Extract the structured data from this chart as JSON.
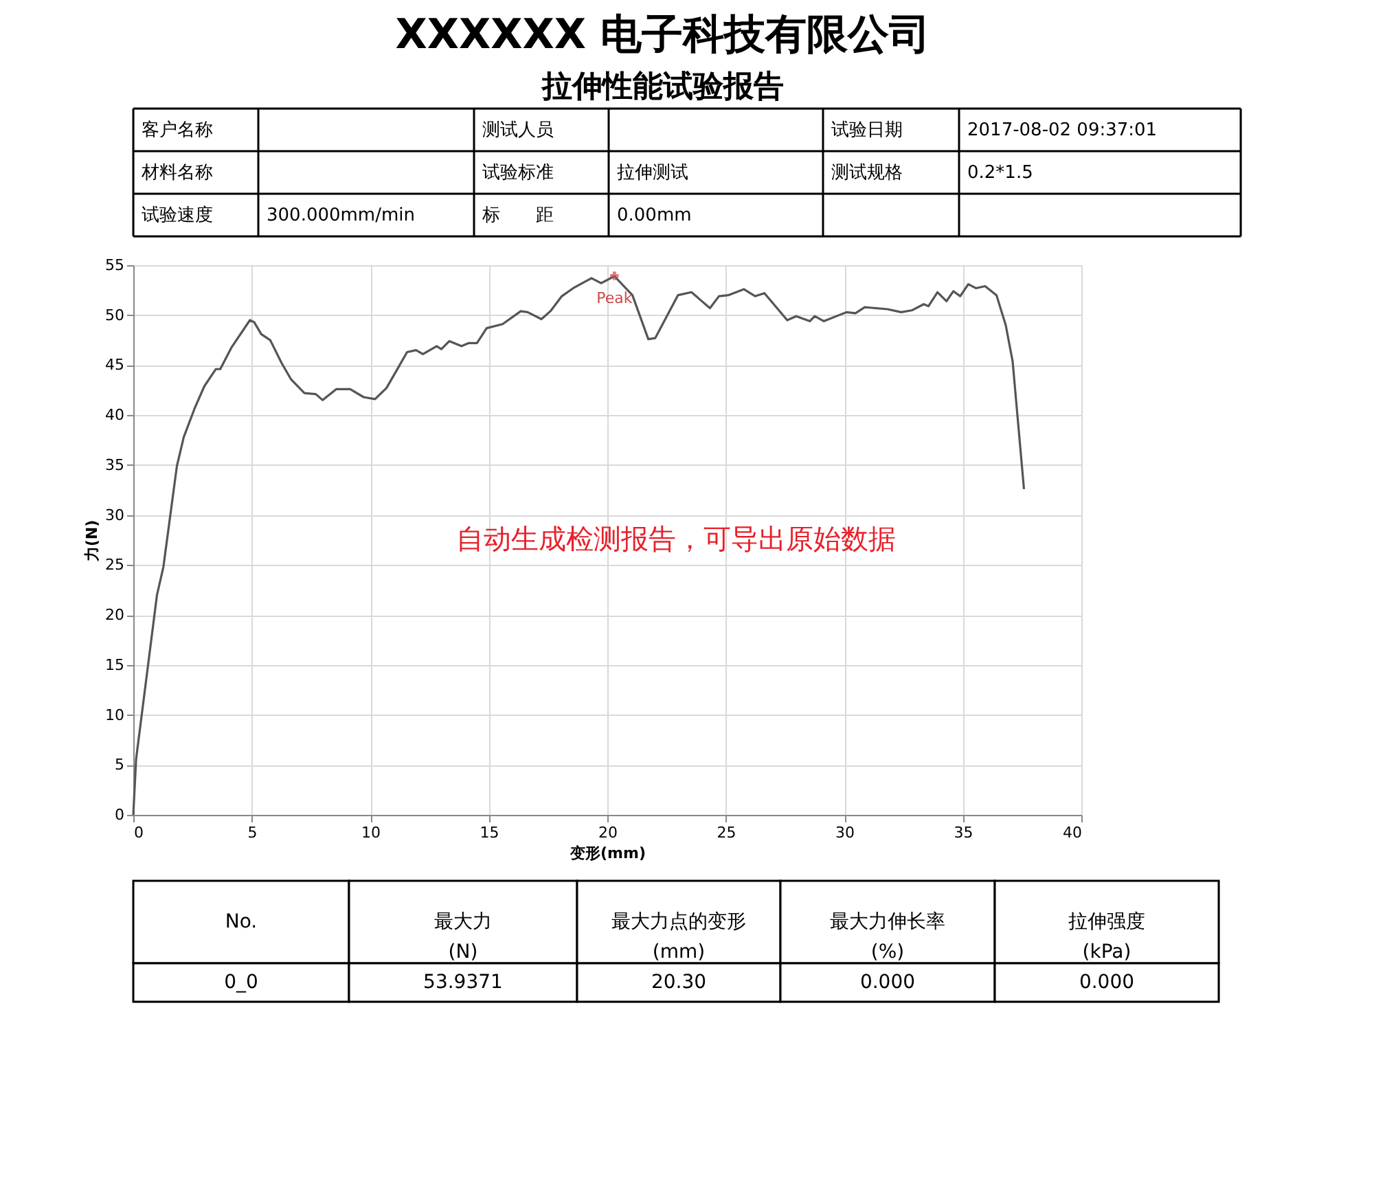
{
  "chart_data": {
    "type": "line",
    "title": "XXXXXX 电子科技有限公司",
    "subtitle": "拉伸性能试验报告",
    "xlabel": "变形(mm)",
    "ylabel": "力(N)",
    "xlim": [
      0,
      40
    ],
    "xticks": [
      0,
      5,
      10,
      15,
      20,
      25,
      30,
      35,
      40
    ],
    "ylim": [
      0,
      55
    ],
    "yticks": [
      0,
      5,
      10,
      15,
      20,
      25,
      30,
      35,
      40,
      45,
      50,
      55
    ],
    "grid": true,
    "marker": "none",
    "line_style": "solid",
    "series": [
      {
        "color": "#555555",
        "x": [
          0,
          0.12,
          1.0,
          1.27,
          1.84,
          2.13,
          2.61,
          3.0,
          3.48,
          3.67,
          4.15,
          4.92,
          5.1,
          5.4,
          5.78,
          6.26,
          6.65,
          7.22,
          7.7,
          7.99,
          8.57,
          9.15,
          9.72,
          10.2,
          10.68,
          11.07,
          11.55,
          11.93,
          12.22,
          12.8,
          13.0,
          13.33,
          13.85,
          14.14,
          14.5,
          14.91,
          15.58,
          16.35,
          16.64,
          17.22,
          17.6,
          18.08,
          18.56,
          19.33,
          19.74,
          20.3,
          21.06,
          21.73,
          22.02,
          22.98,
          23.55,
          24.33,
          24.71,
          25.1,
          25.76,
          26.24,
          26.63,
          27.59,
          27.97,
          28.55,
          28.75,
          29.13,
          30.09,
          30.47,
          30.86,
          31.82,
          32.4,
          32.87,
          33.35,
          33.55,
          33.93,
          34.31,
          34.6,
          34.89,
          35.23,
          35.55,
          35.94,
          36.42,
          36.81,
          37.1,
          37.58
        ],
        "values": [
          0,
          5.6,
          22,
          24.8,
          34.9,
          37.8,
          40.8,
          42.9,
          44.6,
          44.6,
          46.8,
          49.5,
          49.3,
          48.1,
          47.5,
          45.2,
          43.6,
          42.2,
          42.1,
          41.5,
          42.6,
          42.6,
          41.8,
          41.6,
          42.7,
          44.3,
          46.3,
          46.5,
          46.1,
          46.9,
          46.6,
          47.4,
          46.9,
          47.2,
          47.2,
          48.7,
          49.1,
          50.4,
          50.3,
          49.6,
          50.4,
          51.9,
          52.7,
          53.7,
          53.2,
          53.9,
          52.0,
          47.6,
          47.7,
          52.0,
          52.3,
          50.7,
          51.9,
          52.0,
          52.6,
          51.9,
          52.2,
          49.5,
          49.9,
          49.4,
          49.9,
          49.4,
          50.3,
          50.2,
          50.8,
          50.6,
          50.3,
          50.5,
          51.1,
          50.9,
          52.3,
          51.4,
          52.4,
          51.9,
          53.1,
          52.7,
          52.9,
          52.0,
          49.0,
          45.4,
          32.6
        ]
      }
    ],
    "annotations": [
      "自动生成检测报告，可导出原始数据",
      {
        "text": "Peak",
        "x": 20.3,
        "y": 53.9371
      },
      "客户名称",
      "测试人员",
      "试验日期",
      "2017-08-02 09:37:01",
      "材料名称",
      "试验标准",
      "拉伸测试",
      "测试规格",
      "0.2*1.5",
      "试验速度",
      "300.000mm/min",
      "标　　距",
      "0.00mm",
      "No.",
      "最大力\n(N)",
      "最大力点的变形\n(mm)",
      "最大力伸长率\n(%)",
      "拉伸强度\n(kPa)",
      "0_0",
      "53.9371",
      "20.30",
      "0.000",
      "0.000"
    ]
  }
}
